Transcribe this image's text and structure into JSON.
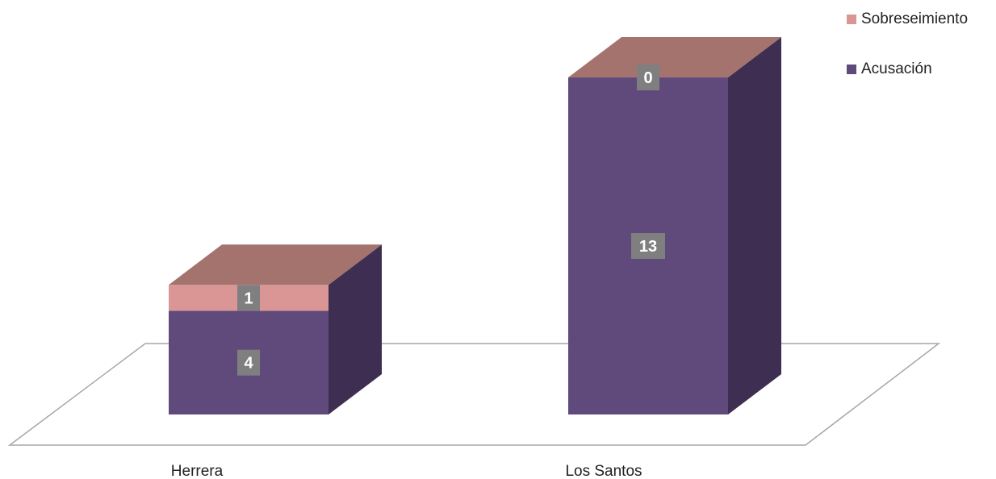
{
  "chart_data": {
    "type": "bar",
    "stacked": true,
    "three_d": true,
    "categories": [
      "Herrera",
      "Los Santos"
    ],
    "series": [
      {
        "name": "Acusación",
        "values": [
          4,
          13
        ],
        "color": "#5f4a7b"
      },
      {
        "name": "Sobreseimiento",
        "values": [
          1,
          0
        ],
        "color": "#d99694"
      }
    ],
    "top_face_color": "#a4736d",
    "side_face_color": "#3e2f52",
    "label_box_color": "#7f7f7f",
    "legend_position": "top-right",
    "ylim": [
      0,
      13
    ],
    "grid": false
  }
}
